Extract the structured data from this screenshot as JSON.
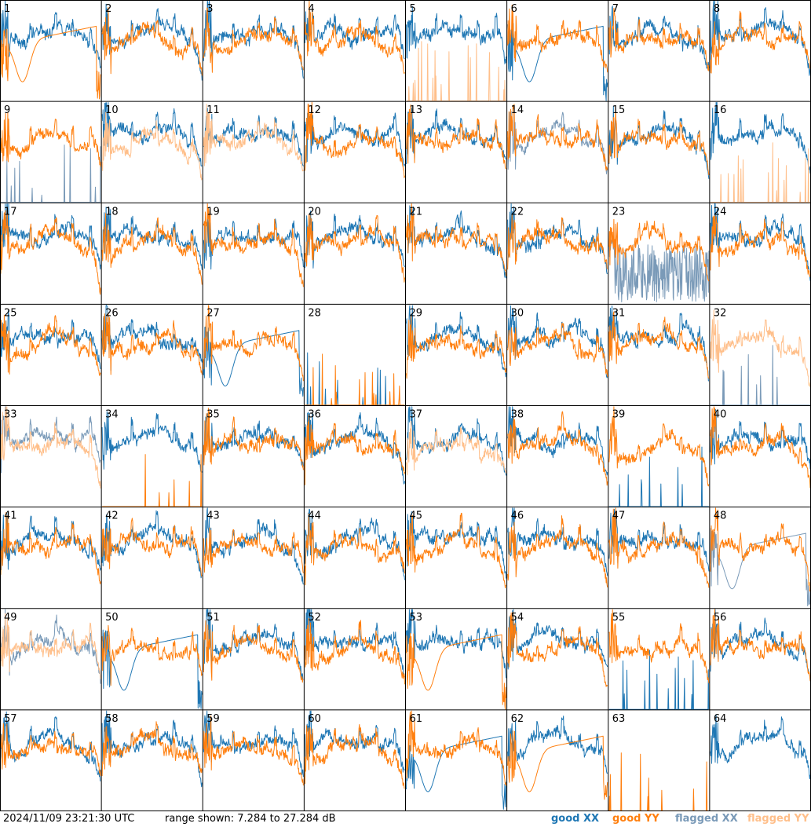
{
  "timestamp": "2024/11/09 23:21:30 UTC",
  "range_text": "range shown: 7.284 to 27.284 dB",
  "legend": [
    {
      "label": "good XX",
      "color": "#1f77b4"
    },
    {
      "label": "good YY",
      "color": "#ff7f0e"
    },
    {
      "label": "flagged XX",
      "color": "#7a9ab8"
    },
    {
      "label": "flagged YY",
      "color": "#ffbf8a"
    }
  ],
  "chart_data": {
    "type": "line",
    "title": "",
    "grid_rows": 8,
    "grid_cols": 8,
    "ylim": [
      7.284,
      27.284
    ],
    "y_units": "dB",
    "tiles": [
      {
        "label": "1",
        "x": "good",
        "y": "good",
        "y_shape": "bowl",
        "x_shape": "ok"
      },
      {
        "label": "2",
        "x": "good",
        "y": "good"
      },
      {
        "label": "3",
        "x": "good",
        "y": "good"
      },
      {
        "label": "4",
        "x": "good",
        "y": "good"
      },
      {
        "label": "5",
        "x": "good",
        "y": "flagged",
        "y_shape": "spikes"
      },
      {
        "label": "6",
        "x": "good",
        "y": "good",
        "x_shape": "bowl"
      },
      {
        "label": "7",
        "x": "good",
        "y": "good"
      },
      {
        "label": "8",
        "x": "good",
        "y": "good"
      },
      {
        "label": "9",
        "x": "flagged",
        "y": "good",
        "x_shape": "spikes"
      },
      {
        "label": "10",
        "x": "good",
        "y": "flagged"
      },
      {
        "label": "11",
        "x": "good",
        "y": "flagged"
      },
      {
        "label": "12",
        "x": "good",
        "y": "good"
      },
      {
        "label": "13",
        "x": "good",
        "y": "good"
      },
      {
        "label": "14",
        "x": "flagged",
        "y": "good"
      },
      {
        "label": "15",
        "x": "good",
        "y": "good"
      },
      {
        "label": "16",
        "x": "good",
        "y": "flagged",
        "y_shape": "spikes"
      },
      {
        "label": "17",
        "x": "good",
        "y": "good"
      },
      {
        "label": "18",
        "x": "good",
        "y": "good"
      },
      {
        "label": "19",
        "x": "good",
        "y": "good"
      },
      {
        "label": "20",
        "x": "good",
        "y": "good"
      },
      {
        "label": "21",
        "x": "good",
        "y": "good"
      },
      {
        "label": "22",
        "x": "good",
        "y": "good"
      },
      {
        "label": "23",
        "x": "flagged",
        "y": "good",
        "x_shape": "noise"
      },
      {
        "label": "24",
        "x": "good",
        "y": "good"
      },
      {
        "label": "25",
        "x": "good",
        "y": "good"
      },
      {
        "label": "26",
        "x": "good",
        "y": "good"
      },
      {
        "label": "27",
        "x": "good",
        "y": "good",
        "x_shape": "bowl"
      },
      {
        "label": "28",
        "x": "good",
        "y": "good",
        "x_shape": "spikes",
        "y_shape": "spikes"
      },
      {
        "label": "29",
        "x": "good",
        "y": "good"
      },
      {
        "label": "30",
        "x": "good",
        "y": "good"
      },
      {
        "label": "31",
        "x": "good",
        "y": "good"
      },
      {
        "label": "32",
        "x": "flagged",
        "y": "flagged",
        "x_shape": "spikes"
      },
      {
        "label": "33",
        "x": "flagged",
        "y": "flagged"
      },
      {
        "label": "34",
        "x": "good",
        "y": "good",
        "y_shape": "spikes"
      },
      {
        "label": "35",
        "x": "good",
        "y": "good"
      },
      {
        "label": "36",
        "x": "good",
        "y": "good"
      },
      {
        "label": "37",
        "x": "good",
        "y": "flagged"
      },
      {
        "label": "38",
        "x": "good",
        "y": "good"
      },
      {
        "label": "39",
        "x": "good",
        "y": "good",
        "x_shape": "spikes"
      },
      {
        "label": "40",
        "x": "good",
        "y": "good"
      },
      {
        "label": "41",
        "x": "good",
        "y": "good"
      },
      {
        "label": "42",
        "x": "good",
        "y": "good"
      },
      {
        "label": "43",
        "x": "good",
        "y": "good"
      },
      {
        "label": "44",
        "x": "good",
        "y": "good"
      },
      {
        "label": "45",
        "x": "good",
        "y": "good"
      },
      {
        "label": "46",
        "x": "good",
        "y": "good"
      },
      {
        "label": "47",
        "x": "good",
        "y": "good"
      },
      {
        "label": "48",
        "x": "flagged",
        "y": "good",
        "x_shape": "bowl"
      },
      {
        "label": "49",
        "x": "flagged",
        "y": "flagged"
      },
      {
        "label": "50",
        "x": "good",
        "y": "good",
        "x_shape": "bowl"
      },
      {
        "label": "51",
        "x": "good",
        "y": "good"
      },
      {
        "label": "52",
        "x": "good",
        "y": "good"
      },
      {
        "label": "53",
        "x": "good",
        "y": "good",
        "y_shape": "bowl"
      },
      {
        "label": "54",
        "x": "good",
        "y": "good"
      },
      {
        "label": "55",
        "x": "good",
        "y": "good",
        "x_shape": "spikes"
      },
      {
        "label": "56",
        "x": "good",
        "y": "good"
      },
      {
        "label": "57",
        "x": "good",
        "y": "good"
      },
      {
        "label": "58",
        "x": "good",
        "y": "good"
      },
      {
        "label": "59",
        "x": "good",
        "y": "good"
      },
      {
        "label": "60",
        "x": "good",
        "y": "good"
      },
      {
        "label": "61",
        "x": "good",
        "y": "good",
        "x_shape": "bowl"
      },
      {
        "label": "62",
        "x": "good",
        "y": "good",
        "y_shape": "bowl"
      },
      {
        "label": "63",
        "x": "none",
        "y": "good",
        "y_shape": "spikes"
      },
      {
        "label": "64",
        "x": "good",
        "y": "none"
      }
    ]
  }
}
